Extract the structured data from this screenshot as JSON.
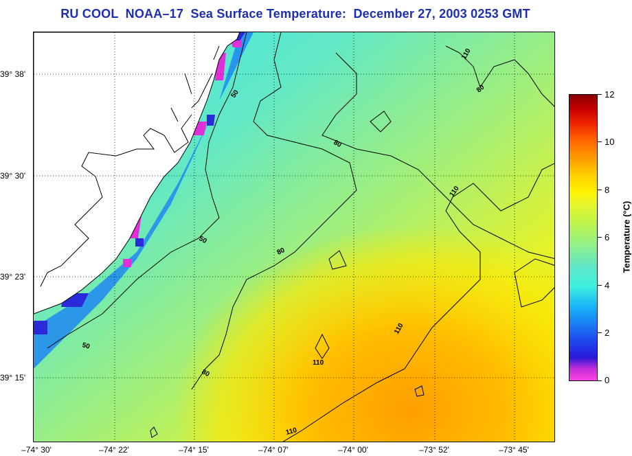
{
  "title": "RU COOL  NOAA–17  Sea Surface Temperature:  December 27, 2003 0253 GMT",
  "lat_labels": [
    "39° 38'",
    "39° 30'",
    "39° 23'",
    "39° 15'"
  ],
  "lon_labels": [
    "–74° 30'",
    "–74° 22'",
    "–74° 15'",
    "–74° 07'",
    "–74° 00'",
    "–73° 52'",
    "–73° 45'"
  ],
  "contour_labels": [
    "110",
    "80",
    "50",
    "80",
    "110",
    "50",
    "80",
    "110",
    "50",
    "80",
    "110",
    "110"
  ],
  "colorbar": {
    "label": "Temperature (°C)",
    "ticks": [
      "12",
      "10",
      "8",
      "6",
      "4",
      "2",
      "0"
    ],
    "min": 0,
    "max": 12
  },
  "colors": {
    "title": "#1d2fb0",
    "contour": "#000000",
    "land": "#ffffff"
  }
}
